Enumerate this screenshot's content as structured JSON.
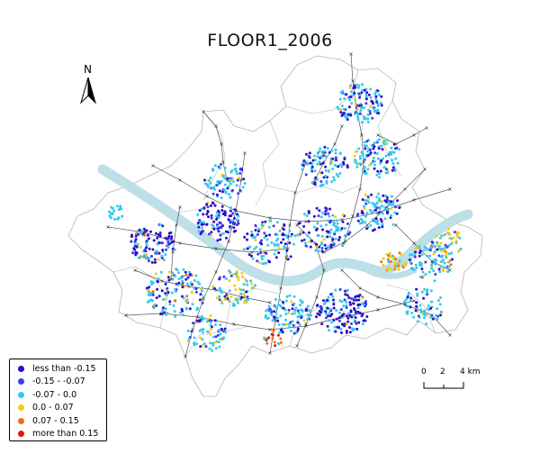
{
  "map": {
    "title": "FLOOR1_2006",
    "north_label": "N",
    "scale": {
      "ticks": [
        "0",
        "2",
        "4 km"
      ]
    },
    "legend": {
      "items": [
        {
          "label": "less than -0.15",
          "color": "#2d0ec8"
        },
        {
          "label": "-0.15 - -0.07",
          "color": "#3c3ee8"
        },
        {
          "label": "-0.07 - 0.0",
          "color": "#35c8f0"
        },
        {
          "label": "0.0 - 0.07",
          "color": "#f7c91a"
        },
        {
          "label": "0.07 - 0.15",
          "color": "#f26a12"
        },
        {
          "label": "more than 0.15",
          "color": "#e01414"
        }
      ]
    },
    "colors": {
      "river": "#bcdfe8",
      "boundary": "#b5b5b5",
      "roads": "#555555",
      "stations": "#222222"
    }
  }
}
